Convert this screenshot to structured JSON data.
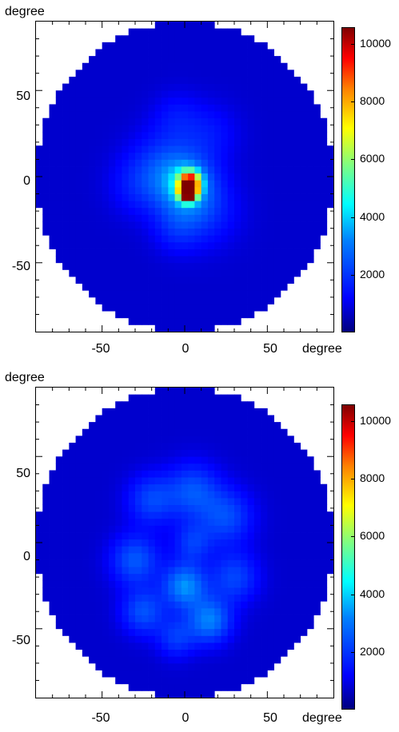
{
  "chart_data": [
    {
      "type": "heatmap",
      "title": "",
      "xlabel": "degree",
      "ylabel": "degree",
      "xlim": [
        -90,
        90
      ],
      "ylim": [
        -90,
        90
      ],
      "x_ticks": [
        "-50",
        "0",
        "50"
      ],
      "y_ticks": [
        "50",
        "0",
        "-50"
      ],
      "colorbar": {
        "ticks": [
          "10000",
          "8000",
          "6000",
          "4000",
          "2000"
        ],
        "range": [
          0,
          10500
        ]
      },
      "field_radius_deg": 90,
      "background_value": 700,
      "blobs": [
        {
          "x": 2,
          "y": -9,
          "value": 9800,
          "sigma": 3.5
        },
        {
          "x": 3,
          "y": -3,
          "value": 6500,
          "sigma": 4.5
        },
        {
          "x": 0,
          "y": -5,
          "value": 2600,
          "sigma": 12
        },
        {
          "x": -12,
          "y": 8,
          "value": 1100,
          "sigma": 14
        },
        {
          "x": 12,
          "y": -20,
          "value": 1000,
          "sigma": 14
        },
        {
          "x": -28,
          "y": -5,
          "value": 800,
          "sigma": 12
        },
        {
          "x": 15,
          "y": 25,
          "value": 700,
          "sigma": 12
        },
        {
          "x": -5,
          "y": 35,
          "value": 600,
          "sigma": 10
        },
        {
          "x": -5,
          "y": -30,
          "value": 800,
          "sigma": 10
        }
      ]
    },
    {
      "type": "heatmap",
      "title": "",
      "xlabel": "degree",
      "ylabel": "degree",
      "xlim": [
        -90,
        90
      ],
      "ylim": [
        -90,
        90
      ],
      "x_ticks": [
        "-50",
        "0",
        "50"
      ],
      "y_ticks": [
        "50",
        "0",
        "-50"
      ],
      "colorbar": {
        "ticks": [
          "10000",
          "8000",
          "6000",
          "4000",
          "2000"
        ],
        "range": [
          0,
          10500
        ]
      },
      "field_radius_deg": 90,
      "background_value": 700,
      "blobs": [
        {
          "x": -30,
          "y": -10,
          "value": 1800,
          "sigma": 10
        },
        {
          "x": 0,
          "y": -25,
          "value": 2600,
          "sigma": 9
        },
        {
          "x": 15,
          "y": -45,
          "value": 2400,
          "sigma": 9
        },
        {
          "x": 30,
          "y": -20,
          "value": 1500,
          "sigma": 10
        },
        {
          "x": 25,
          "y": 15,
          "value": 1600,
          "sigma": 11
        },
        {
          "x": 5,
          "y": 30,
          "value": 1700,
          "sigma": 11
        },
        {
          "x": -20,
          "y": 25,
          "value": 1500,
          "sigma": 10
        },
        {
          "x": -25,
          "y": -40,
          "value": 1700,
          "sigma": 9
        },
        {
          "x": 5,
          "y": 0,
          "value": 1300,
          "sigma": 8
        },
        {
          "x": -5,
          "y": -55,
          "value": 1300,
          "sigma": 8
        }
      ]
    }
  ]
}
